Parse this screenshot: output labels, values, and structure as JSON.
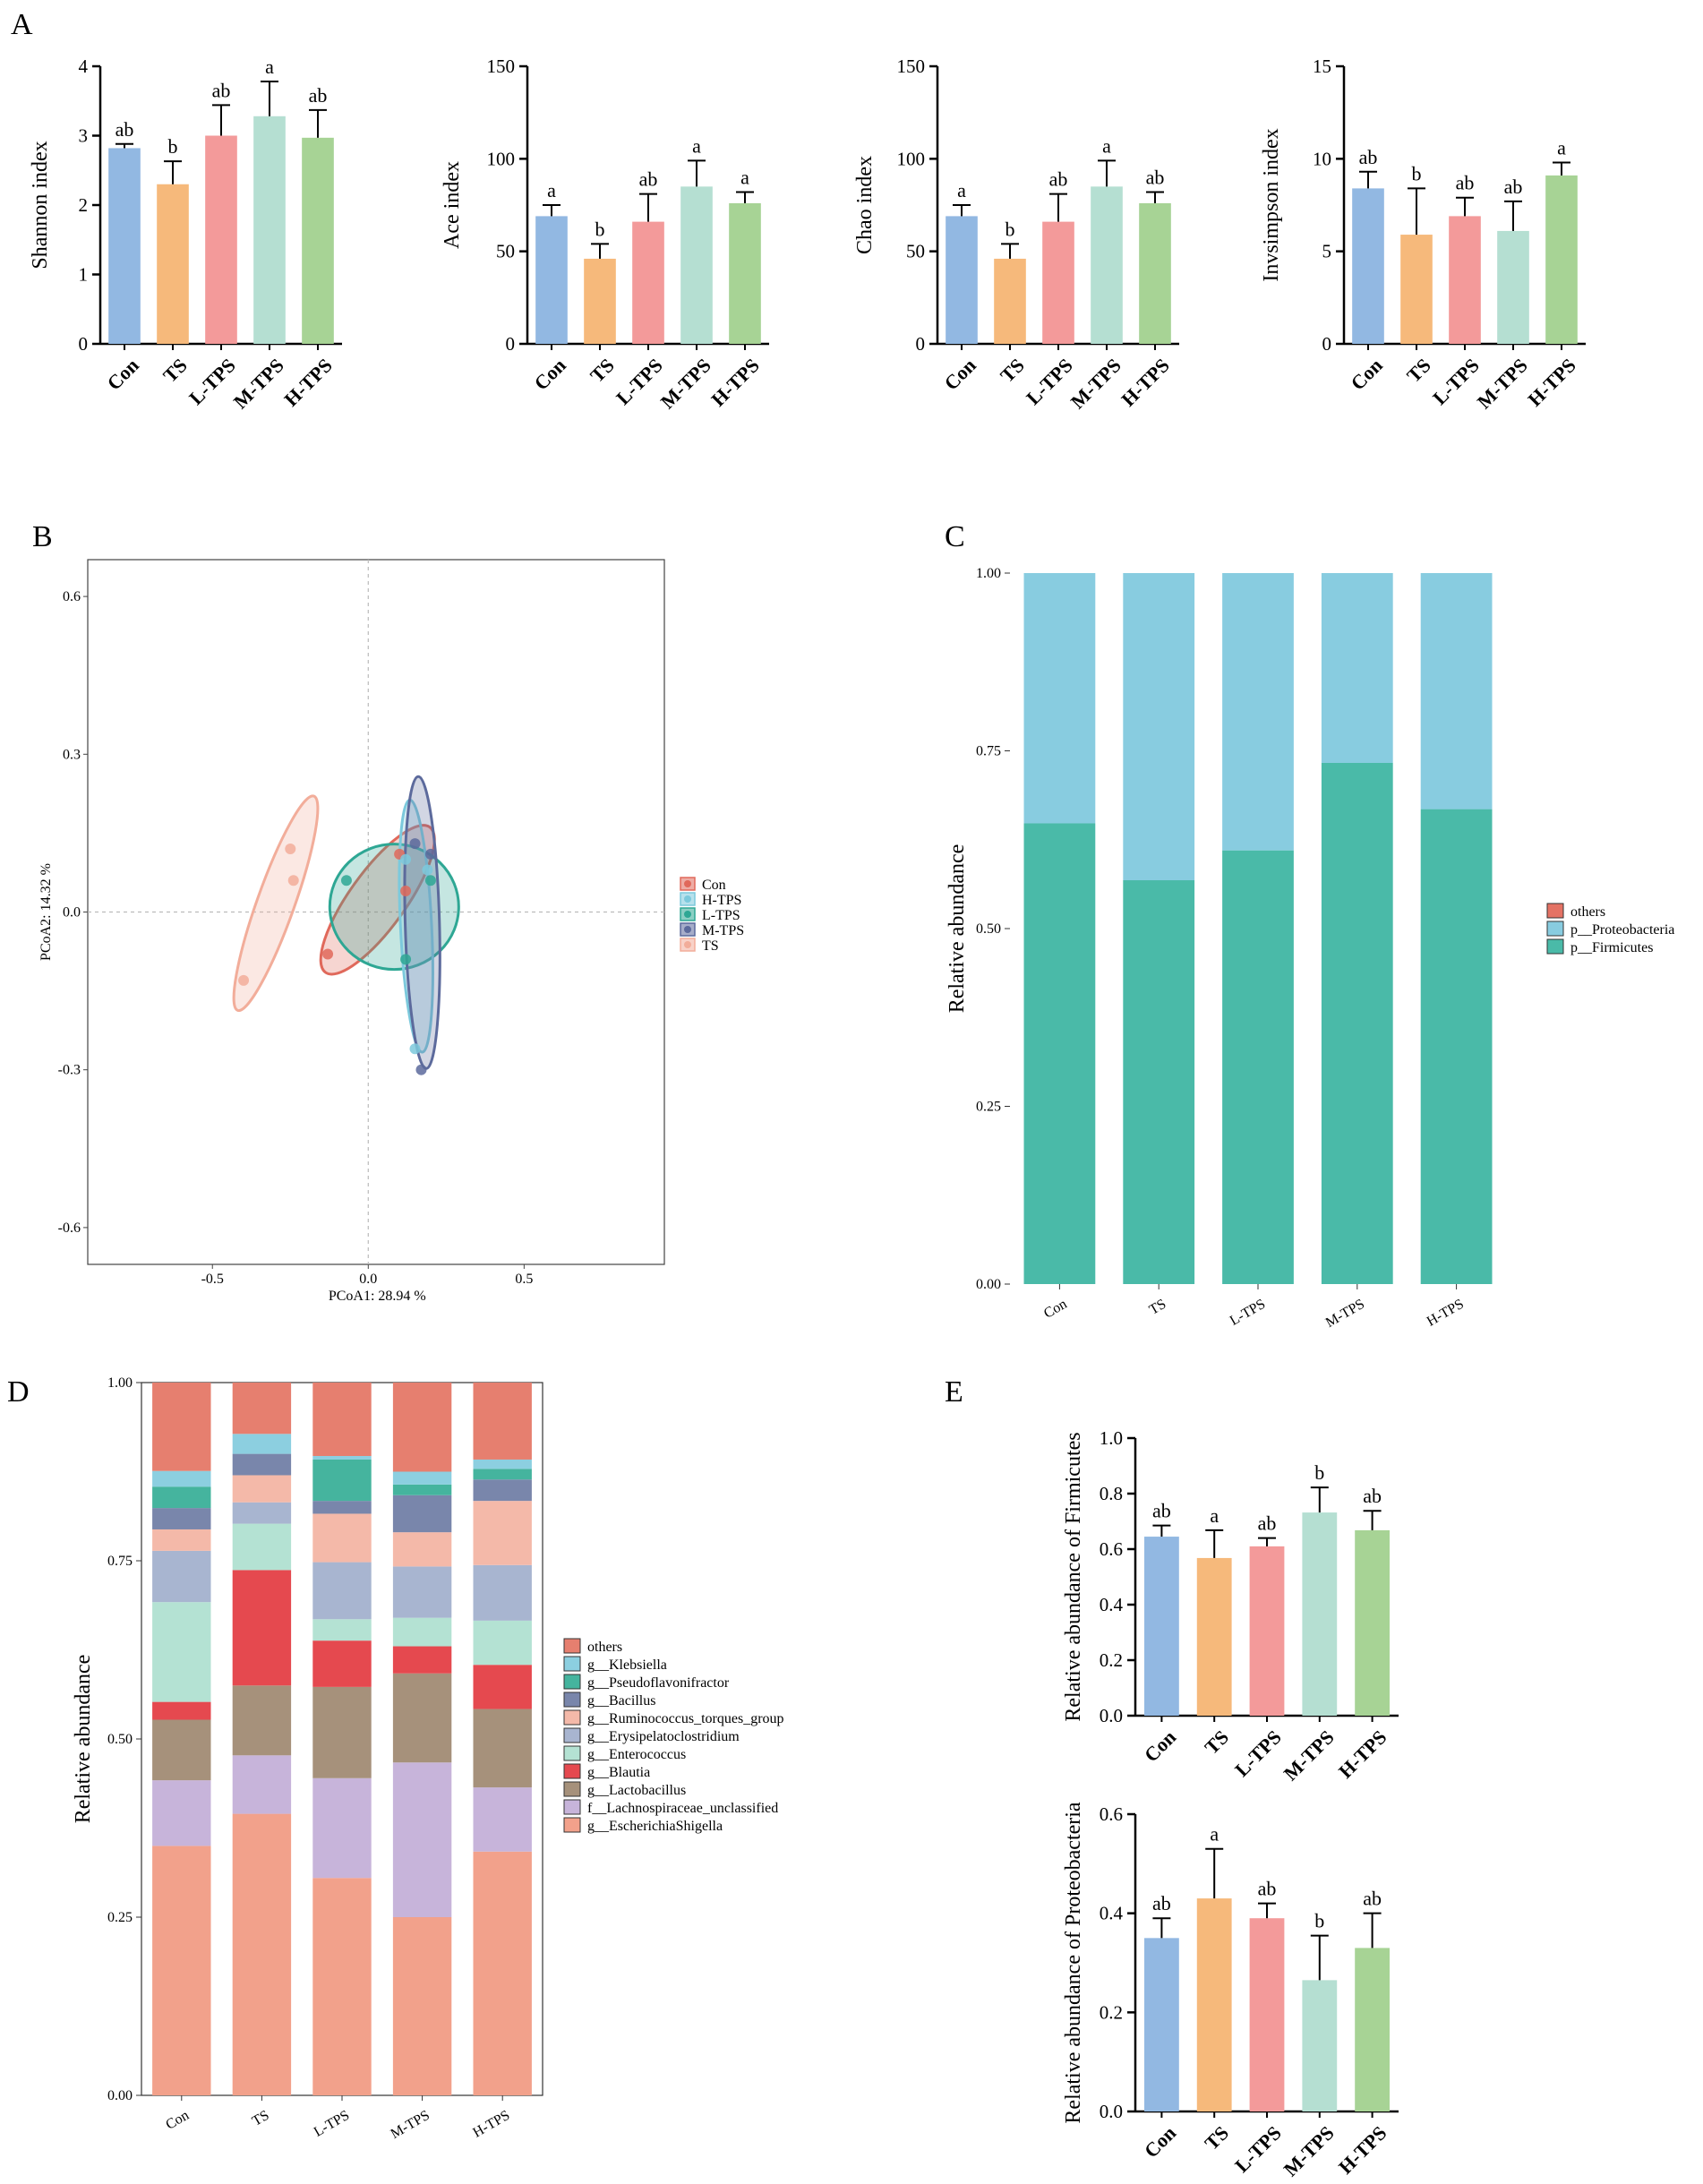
{
  "groups": [
    "Con",
    "TS",
    "L-TPS",
    "M-TPS",
    "H-TPS"
  ],
  "colors": {
    "Con": "#92b8e2",
    "TS": "#f6b97b",
    "L-TPS": "#f39a9a",
    "M-TPS": "#b5dfd2",
    "H-TPS": "#a7d395",
    "pcoa_Con": "#e0695b",
    "pcoa_H-TPS": "#7cc9dc",
    "pcoa_L-TPS": "#2ea794",
    "pcoa_M-TPS": "#5c6a9c",
    "pcoa_TS": "#f2ad9a",
    "firmicutes": "#4abaa8",
    "proteobacteria": "#88cce0",
    "others_phylum": "#e47264"
  },
  "panel_letters": {
    "A": "A",
    "B": "B",
    "C": "C",
    "D": "D",
    "E": "E"
  },
  "chart_data": [
    {
      "id": "A1",
      "type": "bar",
      "panel": "A",
      "ylabel": "Shannon index",
      "ylim": [
        0,
        4
      ],
      "yticks": [
        "0",
        "1",
        "2",
        "3",
        "4"
      ],
      "categories": [
        "Con",
        "TS",
        "L-TPS",
        "M-TPS",
        "H-TPS"
      ],
      "values": [
        2.82,
        2.3,
        3.0,
        3.28,
        2.97
      ],
      "errors": [
        0.06,
        0.33,
        0.44,
        0.5,
        0.4
      ],
      "labels": [
        "ab",
        "b",
        "ab",
        "a",
        "ab"
      ]
    },
    {
      "id": "A2",
      "type": "bar",
      "panel": "A",
      "ylabel": "Ace index",
      "ylim": [
        0,
        150
      ],
      "yticks": [
        "0",
        "50",
        "100",
        "150"
      ],
      "categories": [
        "Con",
        "TS",
        "L-TPS",
        "M-TPS",
        "H-TPS"
      ],
      "values": [
        69,
        46,
        66,
        85,
        76
      ],
      "errors": [
        6,
        8,
        15,
        14,
        6
      ],
      "labels": [
        "a",
        "b",
        "ab",
        "a",
        "a"
      ]
    },
    {
      "id": "A3",
      "type": "bar",
      "panel": "A",
      "ylabel": "Chao index",
      "ylim": [
        0,
        150
      ],
      "yticks": [
        "0",
        "50",
        "100",
        "150"
      ],
      "categories": [
        "Con",
        "TS",
        "L-TPS",
        "M-TPS",
        "H-TPS"
      ],
      "values": [
        69,
        46,
        66,
        85,
        76
      ],
      "errors": [
        6,
        8,
        15,
        14,
        6
      ],
      "labels": [
        "a",
        "b",
        "ab",
        "a",
        "ab"
      ]
    },
    {
      "id": "A4",
      "type": "bar",
      "panel": "A",
      "ylabel": "Invsimpson index",
      "ylim": [
        0,
        15
      ],
      "yticks": [
        "0",
        "5",
        "10",
        "15"
      ],
      "categories": [
        "Con",
        "TS",
        "L-TPS",
        "M-TPS",
        "H-TPS"
      ],
      "values": [
        8.4,
        5.9,
        6.9,
        6.1,
        9.1
      ],
      "errors": [
        0.9,
        2.5,
        1.0,
        1.6,
        0.7
      ],
      "labels": [
        "ab",
        "b",
        "ab",
        "ab",
        "a"
      ]
    },
    {
      "id": "B",
      "type": "scatter",
      "panel": "B",
      "xlabel": "PCoA1:  28.94 %",
      "ylabel": "PCoA2:  14.32 %",
      "xlim": [
        -0.9,
        0.95
      ],
      "ylim": [
        -0.67,
        0.67
      ],
      "xticks": [
        -0.5,
        0.0,
        0.5
      ],
      "xtick_labels": [
        "-0.5",
        "0.0",
        "0.5"
      ],
      "yticks": [
        0.6,
        0.3,
        0.0,
        -0.3,
        -0.6
      ],
      "ytick_labels": [
        "0.6",
        "0.3",
        "0.0",
        "-0.3",
        "-0.6"
      ],
      "legend": [
        "Con",
        "H-TPS",
        "L-TPS",
        "M-TPS",
        "TS"
      ],
      "series": [
        {
          "name": "Con",
          "points": [
            [
              -0.13,
              -0.08
            ],
            [
              0.1,
              0.11
            ],
            [
              0.12,
              0.04
            ]
          ]
        },
        {
          "name": "H-TPS",
          "points": [
            [
              0.15,
              -0.26
            ],
            [
              0.12,
              0.1
            ],
            [
              0.19,
              0.08
            ]
          ]
        },
        {
          "name": "L-TPS",
          "points": [
            [
              -0.07,
              0.06
            ],
            [
              0.12,
              -0.09
            ],
            [
              0.2,
              0.06
            ]
          ]
        },
        {
          "name": "M-TPS",
          "points": [
            [
              0.17,
              -0.3
            ],
            [
              0.15,
              0.13
            ],
            [
              0.2,
              0.11
            ]
          ]
        },
        {
          "name": "TS",
          "points": [
            [
              -0.4,
              -0.13
            ],
            [
              -0.25,
              0.12
            ],
            [
              -0.24,
              0.06
            ]
          ]
        }
      ]
    },
    {
      "id": "C",
      "type": "bar",
      "panel": "C",
      "stacked": true,
      "ylabel": "Relative abundance",
      "ylim": [
        0,
        1
      ],
      "yticks": [
        "0.00",
        "0.25",
        "0.50",
        "0.75",
        "1.00"
      ],
      "categories": [
        "Con",
        "TS",
        "L-TPS",
        "M-TPS",
        "H-TPS"
      ],
      "legend": [
        "others",
        "p__Proteobacteria",
        "p__Firmicutes"
      ],
      "series": [
        {
          "name": "p__Firmicutes",
          "values": [
            0.648,
            0.568,
            0.61,
            0.733,
            0.668
          ]
        },
        {
          "name": "p__Proteobacteria",
          "values": [
            0.352,
            0.432,
            0.39,
            0.267,
            0.332
          ]
        },
        {
          "name": "others",
          "values": [
            0,
            0,
            0,
            0,
            0
          ]
        }
      ]
    },
    {
      "id": "D",
      "type": "bar",
      "panel": "D",
      "stacked": true,
      "ylabel": "Relative abundance",
      "ylim": [
        0,
        1
      ],
      "yticks": [
        "0.00",
        "0.25",
        "0.50",
        "0.75",
        "1.00"
      ],
      "categories": [
        "Con",
        "TS",
        "L-TPS",
        "M-TPS",
        "H-TPS"
      ],
      "legend": [
        "others",
        "g__Klebsiella",
        "g__Pseudoflavonifractor",
        "g__Bacillus",
        "g__Ruminococcus_torques_group",
        "g__Erysipelatoclostridium",
        "g__Enterococcus",
        "g__Blautia",
        "g__Lactobacillus",
        "f__Lachnospiraceae_unclassified",
        "g__EscherichiaShigella"
      ],
      "series": [
        {
          "name": "g__EscherichiaShigella",
          "color": "#f2a18b",
          "values": [
            0.35,
            0.395,
            0.305,
            0.25,
            0.342
          ]
        },
        {
          "name": "f__Lachnospiraceae_unclassified",
          "color": "#c7b4da",
          "values": [
            0.092,
            0.082,
            0.14,
            0.217,
            0.09
          ]
        },
        {
          "name": "g__Lactobacillus",
          "color": "#a6917b",
          "values": [
            0.085,
            0.098,
            0.128,
            0.125,
            0.11
          ]
        },
        {
          "name": "g__Blautia",
          "color": "#e5494f",
          "values": [
            0.025,
            0.162,
            0.065,
            0.038,
            0.062
          ]
        },
        {
          "name": "g__Enterococcus",
          "color": "#b4e2d3",
          "values": [
            0.14,
            0.065,
            0.03,
            0.04,
            0.062
          ]
        },
        {
          "name": "g__Erysipelatoclostridium",
          "color": "#a8b5d0",
          "values": [
            0.072,
            0.03,
            0.08,
            0.072,
            0.078
          ]
        },
        {
          "name": "g__Ruminococcus_torques_group",
          "color": "#f4b9a9",
          "values": [
            0.03,
            0.038,
            0.068,
            0.048,
            0.09
          ]
        },
        {
          "name": "g__Bacillus",
          "color": "#7986ab",
          "values": [
            0.03,
            0.03,
            0.018,
            0.052,
            0.03
          ]
        },
        {
          "name": "g__Pseudoflavonifractor",
          "color": "#45b49e",
          "values": [
            0.03,
            0.0,
            0.058,
            0.015,
            0.015
          ]
        },
        {
          "name": "g__Klebsiella",
          "color": "#8ccfe0",
          "values": [
            0.022,
            0.028,
            0.005,
            0.018,
            0.013
          ]
        },
        {
          "name": "others",
          "color": "#e67f6f",
          "values": [
            0.124,
            0.072,
            0.103,
            0.125,
            0.108
          ]
        }
      ]
    },
    {
      "id": "E1",
      "type": "bar",
      "panel": "E",
      "ylabel": "Relative abundance of Firmicutes",
      "ylim": [
        0,
        1
      ],
      "yticks": [
        "0.0",
        "0.2",
        "0.4",
        "0.6",
        "0.8",
        "1.0"
      ],
      "categories": [
        "Con",
        "TS",
        "L-TPS",
        "M-TPS",
        "H-TPS"
      ],
      "values": [
        0.645,
        0.568,
        0.61,
        0.732,
        0.668
      ],
      "errors": [
        0.04,
        0.1,
        0.03,
        0.09,
        0.07
      ],
      "labels": [
        "ab",
        "a",
        "ab",
        "b",
        "ab"
      ]
    },
    {
      "id": "E2",
      "type": "bar",
      "panel": "E",
      "ylabel": "Relative abundance of Proteobacteria",
      "ylim": [
        0,
        0.6
      ],
      "yticks": [
        "0.0",
        "0.2",
        "0.4",
        "0.6"
      ],
      "categories": [
        "Con",
        "TS",
        "L-TPS",
        "M-TPS",
        "H-TPS"
      ],
      "values": [
        0.35,
        0.43,
        0.39,
        0.265,
        0.33
      ],
      "errors": [
        0.04,
        0.1,
        0.03,
        0.09,
        0.07
      ],
      "labels": [
        "ab",
        "a",
        "ab",
        "b",
        "ab"
      ]
    }
  ]
}
